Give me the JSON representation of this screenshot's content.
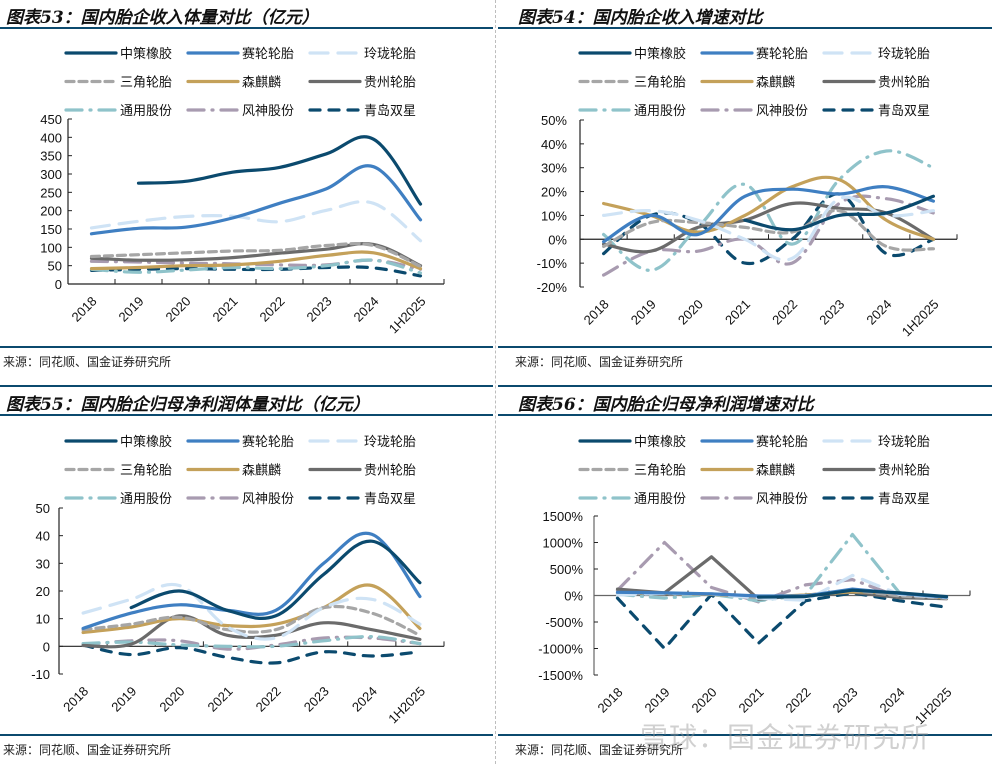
{
  "source_text": "来源：同花顺、国金证券研究所",
  "watermark": "雪球：国金证券研究所",
  "series_styles": [
    {
      "name": "中策橡胶",
      "color": "#0b4a6e",
      "dash": "solid"
    },
    {
      "name": "赛轮轮胎",
      "color": "#3f7fc2",
      "dash": "solid"
    },
    {
      "name": "玲珑轮胎",
      "color": "#cfe3f5",
      "dash": "longdash"
    },
    {
      "name": "三角轮胎",
      "color": "#a6a6a6",
      "dash": "dash"
    },
    {
      "name": "森麒麟",
      "color": "#c4a15a",
      "dash": "solid"
    },
    {
      "name": "贵州轮胎",
      "color": "#6b6b6b",
      "dash": "solid"
    },
    {
      "name": "通用股份",
      "color": "#8fc3ca",
      "dash": "dashdot"
    },
    {
      "name": "风神股份",
      "color": "#a89bb0",
      "dash": "dashdot"
    },
    {
      "name": "青岛双星",
      "color": "#0b4a6e",
      "dash": "bigdash"
    }
  ],
  "chart_data": [
    {
      "id": "fig53",
      "type": "line",
      "title": "图表53：国内胎企收入体量对比（亿元）",
      "categories": [
        "2018",
        "2019",
        "2020",
        "2021",
        "2022",
        "2023",
        "2024",
        "1H2025"
      ],
      "ylim": [
        0,
        450
      ],
      "yticks": [
        0,
        50,
        100,
        150,
        200,
        250,
        300,
        350,
        400,
        450
      ],
      "ytick_labels": [
        "0",
        "50",
        "100",
        "150",
        "200",
        "250",
        "300",
        "350",
        "400",
        "450"
      ],
      "legend": "top",
      "xlabel": "",
      "ylabel": "",
      "series": [
        {
          "name": "中策橡胶",
          "values": [
            null,
            275,
            280,
            305,
            318,
            355,
            395,
            218
          ]
        },
        {
          "name": "赛轮轮胎",
          "values": [
            137,
            152,
            155,
            180,
            220,
            260,
            320,
            175
          ]
        },
        {
          "name": "玲珑轮胎",
          "values": [
            153,
            171,
            184,
            185,
            170,
            201,
            220,
            118
          ]
        },
        {
          "name": "三角轮胎",
          "values": [
            75,
            80,
            85,
            90,
            92,
            105,
            105,
            48
          ]
        },
        {
          "name": "森麒麟",
          "values": [
            42,
            45,
            50,
            52,
            62,
            78,
            85,
            42
          ]
        },
        {
          "name": "贵州轮胎",
          "values": [
            70,
            65,
            66,
            72,
            84,
            95,
            108,
            50
          ]
        },
        {
          "name": "通用股份",
          "values": [
            40,
            32,
            38,
            45,
            42,
            50,
            65,
            30
          ]
        },
        {
          "name": "风神股份",
          "values": [
            62,
            60,
            57,
            55,
            52,
            52,
            65,
            40
          ]
        },
        {
          "name": "青岛双星",
          "values": [
            37,
            40,
            42,
            40,
            40,
            45,
            44,
            22
          ]
        }
      ]
    },
    {
      "id": "fig54",
      "type": "line",
      "title": "图表54：国内胎企收入增速对比",
      "categories": [
        "2018",
        "2019",
        "2020",
        "2021",
        "2022",
        "2023",
        "2024",
        "1H2025"
      ],
      "ylim": [
        -20,
        50
      ],
      "yticks": [
        -20,
        -10,
        0,
        10,
        20,
        30,
        40,
        50
      ],
      "ytick_labels": [
        "-20%",
        "-10%",
        "0%",
        "10%",
        "20%",
        "30%",
        "40%",
        "50%"
      ],
      "legend": "top",
      "xlabel": "",
      "ylabel": "",
      "series": [
        {
          "name": "中策橡胶",
          "values": [
            null,
            null,
            null,
            8,
            4,
            10,
            11,
            18
          ]
        },
        {
          "name": "赛轮轮胎",
          "values": [
            -1,
            10,
            2,
            18,
            21,
            19,
            22,
            16
          ]
        },
        {
          "name": "玲珑轮胎",
          "values": [
            10,
            12,
            8,
            0,
            -8,
            17,
            10,
            12
          ]
        },
        {
          "name": "三角轮胎",
          "values": [
            -3,
            7,
            7,
            5,
            3,
            12,
            -3,
            -4
          ]
        },
        {
          "name": "森麒麟",
          "values": [
            15,
            10,
            3,
            10,
            22,
            25,
            8,
            0
          ]
        },
        {
          "name": "贵州轮胎",
          "values": [
            -2,
            -5,
            5,
            8,
            15,
            13,
            11,
            0
          ]
        },
        {
          "name": "通用股份",
          "values": [
            2,
            -13,
            5,
            23,
            -2,
            25,
            37,
            30
          ]
        },
        {
          "name": "风神股份",
          "values": [
            -15,
            -5,
            -5,
            0,
            -10,
            15,
            17,
            11
          ]
        },
        {
          "name": "青岛双星",
          "values": [
            -6,
            10,
            7,
            -10,
            0,
            19,
            -6,
            0
          ]
        }
      ]
    },
    {
      "id": "fig55",
      "type": "line",
      "title": "图表55：国内胎企归母净利润体量对比（亿元）",
      "categories": [
        "2018",
        "2019",
        "2020",
        "2021",
        "2022",
        "2023",
        "2024",
        "1H2025"
      ],
      "ylim": [
        -10,
        50
      ],
      "yticks": [
        -10,
        0,
        10,
        20,
        30,
        40,
        50
      ],
      "ytick_labels": [
        "-10",
        "0",
        "10",
        "20",
        "30",
        "40",
        "50"
      ],
      "legend": "top",
      "xlabel": "",
      "ylabel": "",
      "series": [
        {
          "name": "中策橡胶",
          "values": [
            null,
            14,
            20,
            13,
            11,
            26,
            38,
            23
          ]
        },
        {
          "name": "赛轮轮胎",
          "values": [
            6.5,
            12,
            15,
            13,
            13,
            30,
            40.5,
            18
          ]
        },
        {
          "name": "玲珑轮胎",
          "values": [
            12,
            17,
            22,
            7,
            3,
            14,
            17,
            8
          ]
        },
        {
          "name": "三角轮胎",
          "values": [
            6,
            8,
            10.5,
            6,
            6,
            14,
            12,
            4
          ]
        },
        {
          "name": "森麒麟",
          "values": [
            5,
            7,
            10,
            7.5,
            8,
            14,
            22,
            6.5
          ]
        },
        {
          "name": "贵州轮胎",
          "values": [
            0.3,
            0.8,
            11,
            4,
            4,
            8.5,
            6,
            2.5
          ]
        },
        {
          "name": "通用股份",
          "values": [
            1,
            1.5,
            0.5,
            0,
            0,
            2,
            3.5,
            1
          ]
        },
        {
          "name": "风神股份",
          "values": [
            0.5,
            2,
            2,
            -1,
            0.5,
            3,
            3,
            1
          ]
        },
        {
          "name": "青岛双星",
          "values": [
            0.5,
            -3,
            -0.5,
            -4,
            -6,
            -2,
            -3.5,
            -2
          ]
        }
      ]
    },
    {
      "id": "fig56",
      "type": "line",
      "title": "图表56：国内胎企归母净利润增速对比",
      "categories": [
        "2018",
        "2019",
        "2020",
        "2021",
        "2022",
        "2023",
        "2024",
        "1H2025"
      ],
      "ylim": [
        -1500,
        1500
      ],
      "yticks": [
        -1500,
        -1000,
        -500,
        0,
        500,
        1000,
        1500
      ],
      "ytick_labels": [
        "-1500%",
        "-1000%",
        "-500%",
        "0%",
        "500%",
        "1000%",
        "1500%"
      ],
      "legend": "top",
      "xlabel": "",
      "ylabel": "",
      "series": [
        {
          "name": "中策橡胶",
          "values": [
            null,
            null,
            null,
            -30,
            -20,
            100,
            50,
            -20
          ]
        },
        {
          "name": "赛轮轮胎",
          "values": [
            60,
            50,
            30,
            -10,
            -10,
            120,
            40,
            -30
          ]
        },
        {
          "name": "玲珑轮胎",
          "values": [
            10,
            40,
            30,
            -50,
            -90,
            380,
            20,
            -40
          ]
        },
        {
          "name": "三角轮胎",
          "values": [
            40,
            30,
            30,
            -40,
            0,
            100,
            -10,
            -50
          ]
        },
        {
          "name": "森麒麟",
          "values": [
            50,
            40,
            20,
            -30,
            10,
            70,
            50,
            -50
          ]
        },
        {
          "name": "贵州轮胎",
          "values": [
            120,
            50,
            730,
            -70,
            10,
            60,
            -40,
            -60
          ]
        },
        {
          "name": "通用股份",
          "values": [
            20,
            -50,
            20,
            -100,
            10,
            1150,
            50,
            -30
          ]
        },
        {
          "name": "风神股份",
          "values": [
            100,
            1000,
            150,
            -120,
            200,
            300,
            -30,
            -60
          ]
        },
        {
          "name": "青岛双星",
          "values": [
            -50,
            -1000,
            20,
            -900,
            -100,
            50,
            -100,
            -220
          ]
        }
      ]
    }
  ]
}
